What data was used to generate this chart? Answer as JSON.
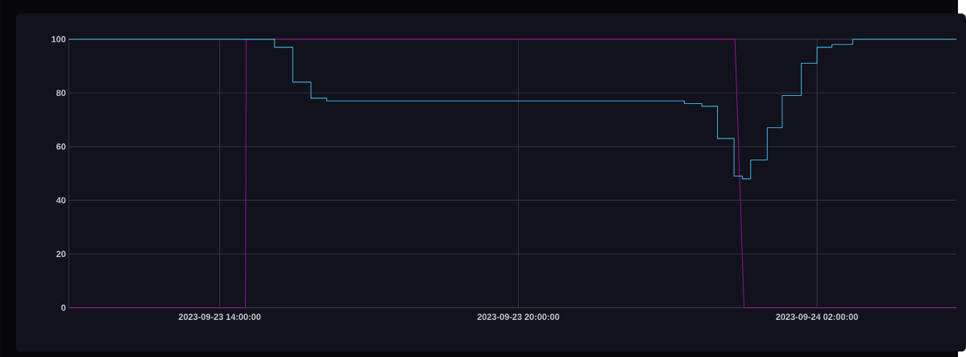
{
  "chart_data": {
    "type": "line",
    "xlim": [
      "2023-09-23T10:58",
      "2023-09-24T04:48"
    ],
    "xticks": [
      {
        "value": "2023-09-23T14:00",
        "label": "2023-09-23 14:00:00"
      },
      {
        "value": "2023-09-23T20:00",
        "label": "2023-09-23 20:00:00"
      },
      {
        "value": "2023-09-24T02:00",
        "label": "2023-09-24 02:00:00"
      }
    ],
    "ylim": [
      0,
      100
    ],
    "yticks": [
      0,
      20,
      40,
      60,
      80,
      100
    ],
    "grid": true,
    "series": [
      {
        "type": "line",
        "color": "#8e0f8e",
        "x": [
          "2023-09-23T10:58",
          "2023-09-23T14:31",
          "2023-09-23T14:32",
          "2023-09-24T00:21",
          "2023-09-24T00:32",
          "2023-09-24T04:48"
        ],
        "values": [
          0,
          0,
          100,
          100,
          0,
          0
        ]
      },
      {
        "type": "step",
        "color": "#3ba6d4",
        "x": [
          "2023-09-23T10:58",
          "2023-09-23T15:06",
          "2023-09-23T15:28",
          "2023-09-23T15:50",
          "2023-09-23T16:09",
          "2023-09-23T23:20",
          "2023-09-23T23:41",
          "2023-09-24T00:00",
          "2023-09-24T00:20",
          "2023-09-24T00:30",
          "2023-09-24T00:40",
          "2023-09-24T01:00",
          "2023-09-24T01:18",
          "2023-09-24T01:41",
          "2023-09-24T02:00",
          "2023-09-24T02:18",
          "2023-09-24T02:43",
          "2023-09-24T04:48"
        ],
        "values": [
          100,
          97,
          84,
          78,
          77,
          76,
          75,
          63,
          49,
          48,
          55,
          67,
          79,
          91,
          97,
          98,
          100,
          100
        ]
      }
    ]
  }
}
